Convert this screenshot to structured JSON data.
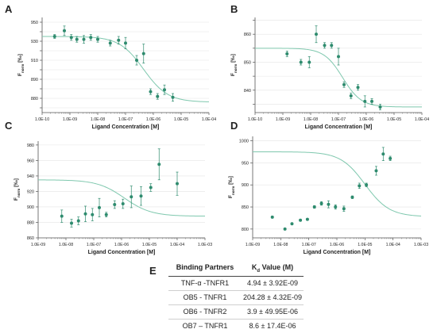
{
  "chart_data": [
    {
      "panel_label": "A",
      "type": "scatter",
      "xlabel": "Ligand Concentration [M]",
      "ylabel_main": "F",
      "ylabel_sub": "norm",
      "ylabel_unit": "[‰]",
      "x_scale": "log",
      "xlim_exp": [
        -10,
        -4
      ],
      "xtick_labels": [
        "1.0E-10",
        "1.0E-09",
        "1.0E-08",
        "1.0E-07",
        "1.0E-06",
        "1.0E-05",
        "1.0E-04"
      ],
      "ylim": [
        855,
        955
      ],
      "yticks": [
        860,
        870,
        880,
        890,
        900,
        910,
        920,
        930,
        940,
        950
      ],
      "ytick_labels": [
        "",
        "880",
        "",
        "890",
        "",
        "910",
        "",
        "930",
        "",
        "950"
      ],
      "fit": {
        "top": 935,
        "bottom": 866,
        "ec50_exp": -6.35,
        "hill": 1
      },
      "points": [
        {
          "x_exp": -9.55,
          "y": 935,
          "err": 2
        },
        {
          "x_exp": -9.2,
          "y": 941,
          "err": 5
        },
        {
          "x_exp": -8.95,
          "y": 934,
          "err": 3
        },
        {
          "x_exp": -8.75,
          "y": 932,
          "err": 3
        },
        {
          "x_exp": -8.5,
          "y": 932,
          "err": 4
        },
        {
          "x_exp": -8.25,
          "y": 934,
          "err": 3
        },
        {
          "x_exp": -8.0,
          "y": 932,
          "err": 3
        },
        {
          "x_exp": -7.55,
          "y": 928,
          "err": 3
        },
        {
          "x_exp": -7.25,
          "y": 931,
          "err": 4
        },
        {
          "x_exp": -7.0,
          "y": 928,
          "err": 6
        },
        {
          "x_exp": -6.6,
          "y": 910,
          "err": 5
        },
        {
          "x_exp": -6.35,
          "y": 917,
          "err": 10
        },
        {
          "x_exp": -6.1,
          "y": 877,
          "err": 3
        },
        {
          "x_exp": -5.85,
          "y": 872,
          "err": 3
        },
        {
          "x_exp": -5.6,
          "y": 879,
          "err": 5
        },
        {
          "x_exp": -5.3,
          "y": 871,
          "err": 4
        }
      ]
    },
    {
      "panel_label": "B",
      "type": "scatter",
      "xlabel": "Ligand Concentration [M]",
      "ylabel_main": "F",
      "ylabel_sub": "norm",
      "ylabel_unit": "[‰]",
      "x_scale": "log",
      "xlim_exp": [
        -10,
        -4
      ],
      "xtick_labels": [
        "1.0E-10",
        "1.0E-09",
        "1.0E-08",
        "1.0E-07",
        "1.0E-06",
        "1.0E-05",
        "1.0E-04"
      ],
      "ylim": [
        832,
        866
      ],
      "yticks": [
        835,
        840,
        845,
        850,
        855,
        860,
        865
      ],
      "ytick_labels": [
        "",
        "840",
        "",
        "850",
        "",
        "860",
        ""
      ],
      "fit": {
        "top": 855,
        "bottom": 834,
        "ec50_exp": -6.85,
        "hill": 1.3
      },
      "points": [
        {
          "x_exp": -8.85,
          "y": 853,
          "err": 1
        },
        {
          "x_exp": -8.35,
          "y": 850,
          "err": 1
        },
        {
          "x_exp": -8.05,
          "y": 850,
          "err": 2
        },
        {
          "x_exp": -7.8,
          "y": 860,
          "err": 3
        },
        {
          "x_exp": -7.5,
          "y": 856,
          "err": 1
        },
        {
          "x_exp": -7.25,
          "y": 856,
          "err": 1
        },
        {
          "x_exp": -7.0,
          "y": 852,
          "err": 3
        },
        {
          "x_exp": -6.8,
          "y": 842,
          "err": 1
        },
        {
          "x_exp": -6.55,
          "y": 838,
          "err": 1
        },
        {
          "x_exp": -6.3,
          "y": 841,
          "err": 1
        },
        {
          "x_exp": -6.05,
          "y": 836,
          "err": 2
        },
        {
          "x_exp": -5.8,
          "y": 836,
          "err": 1
        },
        {
          "x_exp": -5.5,
          "y": 834,
          "err": 1
        }
      ]
    },
    {
      "panel_label": "C",
      "type": "scatter",
      "xlabel": "Ligand Concentration [M]",
      "ylabel_main": "F",
      "ylabel_sub": "norm",
      "ylabel_unit": "[‰]",
      "x_scale": "log",
      "xlim_exp": [
        -9,
        -3
      ],
      "xtick_labels": [
        "1.0E-09",
        "1.0E-08",
        "1.0E-07",
        "1.0E-06",
        "1.0E-05",
        "1.0E-04",
        "1.0E-03"
      ],
      "ylim": [
        860,
        985
      ],
      "yticks": [
        860,
        880,
        900,
        920,
        940,
        960,
        980
      ],
      "ytick_labels": [
        "860",
        "880",
        "900",
        "920",
        "940",
        "960",
        "980"
      ],
      "fit": {
        "top": 935,
        "bottom": 888,
        "ec50_exp": -5.9,
        "hill": 0.9
      },
      "points": [
        {
          "x_exp": -8.15,
          "y": 888,
          "err": 8
        },
        {
          "x_exp": -7.8,
          "y": 879,
          "err": 5
        },
        {
          "x_exp": -7.55,
          "y": 882,
          "err": 5
        },
        {
          "x_exp": -7.3,
          "y": 891,
          "err": 10
        },
        {
          "x_exp": -7.05,
          "y": 890,
          "err": 8
        },
        {
          "x_exp": -6.8,
          "y": 899,
          "err": 12
        },
        {
          "x_exp": -6.55,
          "y": 890,
          "err": 3
        },
        {
          "x_exp": -6.25,
          "y": 903,
          "err": 5
        },
        {
          "x_exp": -5.95,
          "y": 904,
          "err": 6
        },
        {
          "x_exp": -5.65,
          "y": 913,
          "err": 14
        },
        {
          "x_exp": -5.3,
          "y": 914,
          "err": 12
        },
        {
          "x_exp": -4.95,
          "y": 925,
          "err": 5
        },
        {
          "x_exp": -4.65,
          "y": 955,
          "err": 20
        },
        {
          "x_exp": -4.0,
          "y": 930,
          "err": 15
        }
      ]
    },
    {
      "panel_label": "D",
      "type": "scatter",
      "xlabel": "Ligand Concentration [M]",
      "ylabel_main": "F",
      "ylabel_sub": "norm",
      "ylabel_unit": "[‰]",
      "x_scale": "log",
      "xlim_exp": [
        -9,
        -3
      ],
      "xtick_labels": [
        "1.0E-09",
        "1.0E-08",
        "1.0E-07",
        "1.0E-06",
        "1.0E-05",
        "1.0E-04",
        "1.0E-03"
      ],
      "ylim": [
        780,
        1010
      ],
      "yticks": [
        800,
        850,
        900,
        950,
        1000
      ],
      "ytick_labels": [
        "800",
        "850",
        "900",
        "950",
        "1000"
      ],
      "fit": {
        "top": 975,
        "bottom": 828,
        "ec50_exp": -5.0,
        "hill": 1.0
      },
      "points": [
        {
          "x_exp": -8.3,
          "y": 827,
          "err": 2
        },
        {
          "x_exp": -7.85,
          "y": 800,
          "err": 2
        },
        {
          "x_exp": -7.6,
          "y": 812,
          "err": 2
        },
        {
          "x_exp": -7.3,
          "y": 820,
          "err": 2
        },
        {
          "x_exp": -7.05,
          "y": 822,
          "err": 2
        },
        {
          "x_exp": -6.8,
          "y": 850,
          "err": 3
        },
        {
          "x_exp": -6.55,
          "y": 858,
          "err": 4
        },
        {
          "x_exp": -6.3,
          "y": 856,
          "err": 8
        },
        {
          "x_exp": -6.05,
          "y": 850,
          "err": 5
        },
        {
          "x_exp": -5.75,
          "y": 846,
          "err": 6
        },
        {
          "x_exp": -5.45,
          "y": 872,
          "err": 3
        },
        {
          "x_exp": -5.2,
          "y": 898,
          "err": 6
        },
        {
          "x_exp": -4.95,
          "y": 900,
          "err": 4
        },
        {
          "x_exp": -4.6,
          "y": 932,
          "err": 10
        },
        {
          "x_exp": -4.35,
          "y": 970,
          "err": 15
        },
        {
          "x_exp": -4.1,
          "y": 960,
          "err": 5
        }
      ]
    }
  ],
  "table": {
    "panel_label": "E",
    "header": {
      "col1": "Binding Partners",
      "col2_prefix": "K",
      "col2_sub": "d",
      "col2_suffix": " Value (M)"
    },
    "rows": [
      {
        "partner": "TNF-α -TNFR1",
        "kd": "4.94 ± 3.92E-09"
      },
      {
        "partner": "OB5 - TNFR1",
        "kd": "204.28 ± 4.32E-09"
      },
      {
        "partner": "OB6 - TNFR2",
        "kd": "3.9 ± 49.95E-06"
      },
      {
        "partner": "OB7 – TNFR1",
        "kd": "8.6 ± 17.4E-06"
      }
    ]
  },
  "colors": {
    "point": "#2e8b6e",
    "fit_line": "#7fc8ae",
    "error_bar": "#2e8b6e",
    "axis": "#555555",
    "grid": "#e4e4e4",
    "text": "#222222"
  }
}
